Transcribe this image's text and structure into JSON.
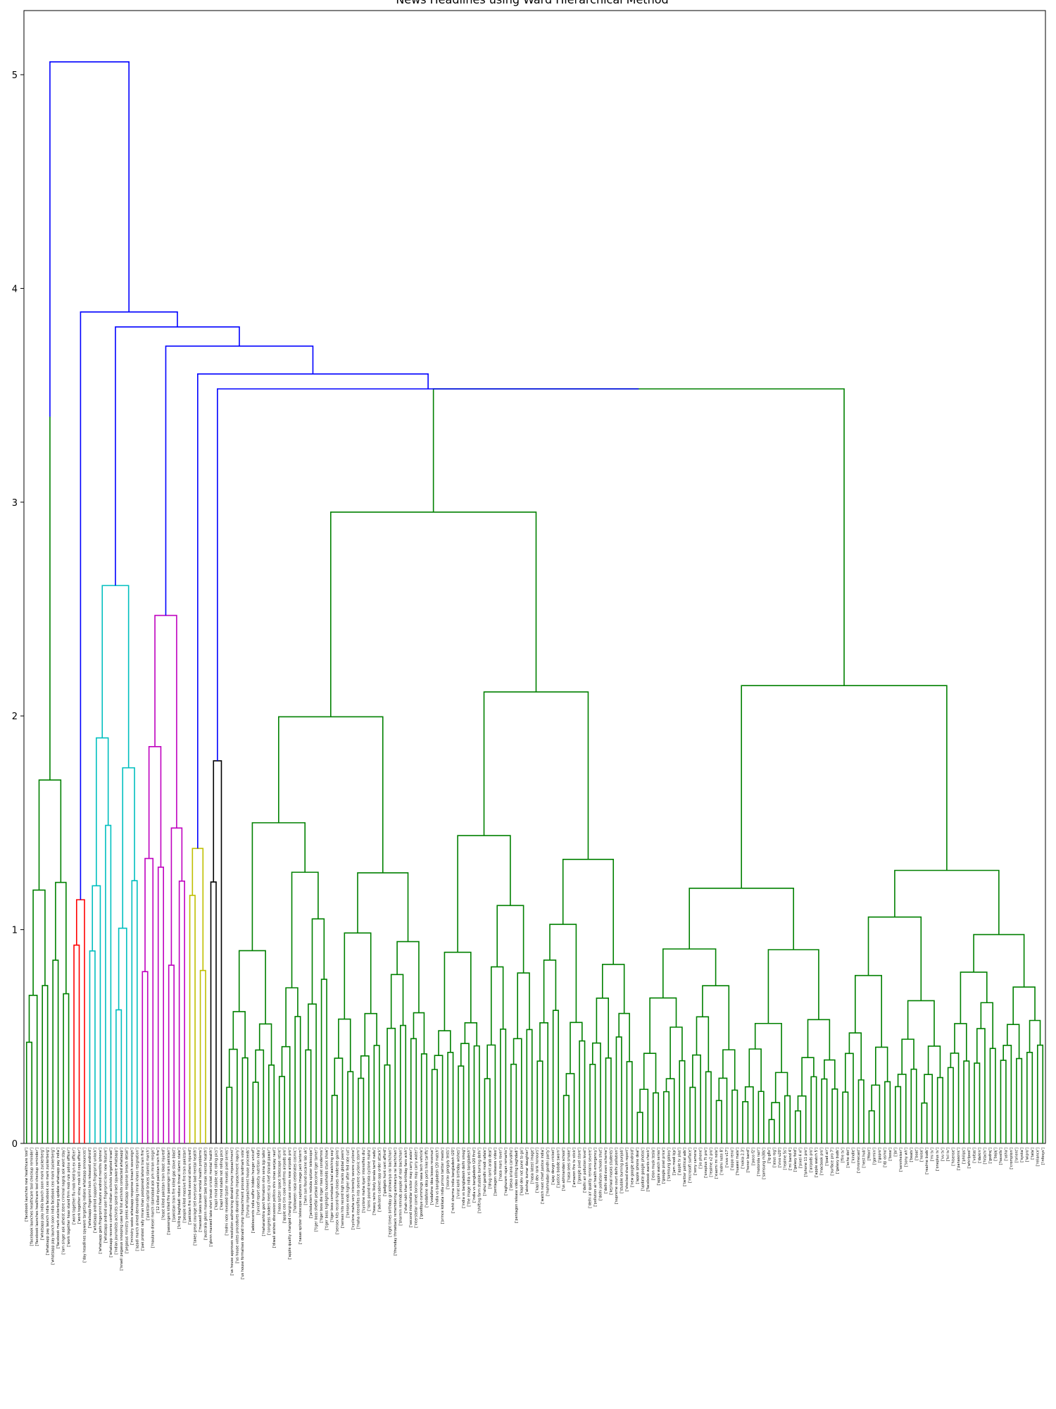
{
  "chart_data": {
    "type": "dendrogram",
    "title": "News Headlines using Ward Hierarchical Method",
    "xlabel": "",
    "ylabel": "",
    "ylim": [
      0,
      5.3
    ],
    "yticks": [
      0,
      1,
      2,
      3,
      4,
      5
    ],
    "grid": false,
    "colors": {
      "root": "#0000ff",
      "green": "#008000",
      "red": "#ff0000",
      "cyan": "#00bfbf",
      "magenta": "#bf00bf",
      "yellow": "#bfbf00",
      "black": "#000000"
    },
    "leaf_count": 194,
    "clusters": [
      {
        "color": "green",
        "leaf_range": [
          0,
          8
        ],
        "height": 1.7
      },
      {
        "color": "red",
        "leaf_range": [
          9,
          11
        ],
        "height": 1.14
      },
      {
        "color": "cyan",
        "leaf_range": [
          12,
          21
        ],
        "height": 2.61
      },
      {
        "color": "magenta",
        "leaf_range": [
          22,
          30
        ],
        "height": 2.47
      },
      {
        "color": "yellow",
        "leaf_range": [
          31,
          34
        ],
        "height": 1.38
      },
      {
        "color": "black",
        "leaf_range": [
          35,
          37
        ],
        "height": 1.79
      },
      {
        "color": "green",
        "leaf_range": [
          38,
          193
        ],
        "height": 3.53
      }
    ],
    "merge_heights": [
      5.06,
      3.89,
      3.82,
      3.73,
      3.6,
      3.53,
      3.4,
      3.25,
      3.2,
      3.17,
      3.12,
      3.09,
      3.05,
      2.93,
      2.91,
      2.85,
      2.82,
      2.78,
      2.73,
      2.69,
      2.55,
      2.48,
      2.46,
      2.39,
      2.36,
      2.33,
      2.12,
      2.06,
      2.03,
      2.0,
      1.98,
      1.93
    ],
    "leaf_labels": [
      "['facebook launches new healthcare tool']",
      "['facebook launches healthcare tool checkup reminder']",
      "['facebook launches healthcare tool checkup reminder']",
      "['whatsapp pay india launch soon mark zuckerberg']",
      "['whatsapp pay launch india facebook ceo mark zuckerberg']",
      "['whatsapp pay launch soon india facebook ceo mark zuckerberg']",
      "['facebook mark zuckerberg update whatsapp pay india']",
      "['iam singer ask atheist stere criminal nagraj ask want stay']",
      "['work together hoax stand firm mob rule police officer']",
      "['work together flu mob held lyn ex officer']",
      "['work together stray mob kill cops officer']",
      "['day headlines spyware targeting indians whatsapp announces']",
      "['whatsapp fingerprint lock released android']",
      "['whatsapp android supports fingerprint unlock']",
      "['whatsapp gets fingerprint feature android months iphone']",
      "['whatsapp android user fingerprint lock new feature']",
      "['whatsapp reverse confirmed indian activists targeted israel']",
      "['indian journalists activists spied israeli spyware whatsapp']",
      "['israeli pegasus snooping case full list activists contacted whatsapp']",
      "['pegasus ministry seeks whatsapp response breach detail']",
      "['ministry seeks whatsapp response breach sovereign']",
      "['azadi march aimed demanding imran khans resignation']",
      "['pak protest rally imran khan postponed lahore train fire']",
      "['pakistan capital braces islamist march']",
      "['maulana diesel march islamabad ask pm imran resign']",
      "['12 killed injured pakistan train fire']",
      "['least killed pakistan train blast injured']",
      "['passengers killed fire passenger train pakistan']",
      "['pakistan train fire killed gas stove blast']",
      "['killing baghdadi reduce threat islamic state']",
      "['people killed massive fire train pakistan']",
      "['pakistan fire killed several others injured']",
      "['takes great courage tell everyone bad mental health']",
      "['maxwell takes break mental health problems']",
      "['australia glenn maxwell take break mental health']",
      "['glenn maxwell take short break cricket mental health']",
      "['kapil mind stable not rolling pics']",
      "['kapil mind stable not rolling pics']",
      "['redmi note revealed tipster reveals pixel series']",
      "['us house approves resolution authorising donald trump impeachment']",
      "['us house votes procedures donald trump impeachment inquiry']",
      "['us house formalises donald trump impeachment process landmark vote']",
      "['trump impeachment house proceeds']",
      "['adolescents india suffer hidden hunger unicef']",
      "['unicef report obesity nutrition india']",
      "['maharashtra govt formation shiv sena bjp talks']",
      "['congress leaders meet ncp chief sharad pawar']",
      "['diwali wishes discussion politics shiv sinas sanjay raut']",
      "['nasa spitzer space telescope retire']",
      "['apple ceo tim cook confirms airpods pro']",
      "['apple quality changed charging case comes new airpods pro']",
      "['halloween nasa celebrates cosmic']",
      "['nasas spitzer telescope captures image jack lantern']",
      "['twin sun found cocaine lab uk']",
      "['jackolantern nebula spitzer telescope']",
      "['tiger boss shefali petwal become tiger tamer']",
      "['tiger boss die tiger rises cost condemns']",
      "['tiger boss highlights households stuck show']",
      "['tiger boss comeback heal watching sep']",
      "['sensex hits record high closes moderate gains']",
      "['sensex hits record high tracks global peers']",
      "['sensex ends higher after fed rate cut']",
      "['cyclone maha very intensity severe cyclone']",
      "['maha intensifies into severe cyclonic storm']",
      "['cyclone maha kyarr intensifies diu']",
      "['rains pound kerala cyclone maha']",
      "['heavy rains likely kerala tamil nadu']",
      "['advisers cabinet opp order attack']",
      "['gadgets hunt cant afford']",
      "['eight times birthday gir aishwarya rai bachchan']",
      "['thursday throwback remembering aishwarya rai bachchan']",
      "['sharmin reminds people of real bachchan']",
      "['shah rukh khan birthday fans wish']",
      "['second interstellar visitor may carry water']",
      "['interstellar comet borisov may carry water']",
      "['goodbye cummings nasa tech vehicle']",
      "['vodafone idea ports hike tariffs']",
      "['vodafone idea losses revenue']",
      "['india vs bangladesh t20 match']",
      "['prince kolkata india prince twitter meets']",
      "['sourav ganguly tests']",
      "['rohit sharma india bangladesh t20']",
      "['virat kohli birthday wishes']",
      "['india vs bangladesh delhi smog']",
      "['the image india vs bangladesh']",
      "['india vs bangladesh t20 first']",
      "['shifting farm stubble burning delhi']",
      "['rahul gandhi modi rafale']",
      "['drug ramit arab deal']",
      "['pentagon releases video']",
      "['nasa mars rover']",
      "['raghuram rajan remarks']",
      "['alexa ariana carvalho']",
      "['pentagon release video killing baghdadi']",
      "['kapil dev not pune to go']",
      "['akshay kumar daughter']",
      "['nasa latest image']",
      "['kapil dev rank honours']",
      "['watch next chief justice india']",
      "['mahmadan gandhi party']",
      "['ajay devgn cricket']",
      "['justice bobde sworn']",
      "['us abhinandan school']",
      "['nasa sees smoke']",
      "['amazon fire tv stick']",
      "['google pixel store']",
      "['delhi air pollution level']",
      "['delhi air quality remains severe']",
      "['pollution air health emergency']",
      "['delhi pollution schools shut']",
      "['delhi odd even scheme']",
      "['kejriwal masks students']",
      "['supreme court delhi pollution']",
      "['stubble burning punjab']",
      "['shocked shaikh report']",
      "['new google android']",
      "['apple iphone deal']",
      "['update google photos']",
      "['facebook wants check']",
      "['elon musk tesla']",
      "['apple watch series']",
      "['google pixel price']",
      "['samsung galaxy']",
      "['jam modi bjp']",
      "['apple tv plus']",
      "['twitter political ads']",
      "['microsoft surface']",
      "['sony camera']",
      "['jio phone']",
      "['oneplus 7t pro']",
      "['realme x2 pro']",
      "['xiaomi mi note']",
      "['redmi note 8']",
      "['vivo v17']",
      "['oppo reno']",
      "['huawei mate']",
      "['nokia 2.3']",
      "['honor band']",
      "['poco f2']",
      "['motorola razr']",
      "['samsung m30s']",
      "['lg g8x']",
      "['asus rog']",
      "['vivo u20']",
      "['realme 5s']",
      "['mi band 4']",
      "['galaxy fold']",
      "['pixel 4 xl']",
      "['iphone 11 pro']",
      "['airpods pro']",
      "['apple watch 5']",
      "['macbook pro']",
      "['ipad air']",
      "['surface pro 7']",
      "['galaxy buds']",
      "['fire tv']",
      "['echo dot']",
      "['kindle']",
      "['chromecast']",
      "['nest hub']",
      "['fitbit']",
      "['garmin']",
      "['gopro']",
      "['dji osmo']",
      "['bose']",
      "['jbl']",
      "['sennheiser']",
      "['sony wh']",
      "['beats']",
      "['boat']",
      "['noise']",
      "['realme buds']",
      "['mi tv']",
      "['oneplus tv']",
      "['vu tv']",
      "['tcl tv']",
      "['hisense']",
      "['panasonic']",
      "['philips']",
      "['whirlpool']",
      "['voltas']",
      "['daikin']",
      "['hitachi']",
      "['godrej']",
      "['bajaj']",
      "['havells']",
      "['usha']",
      "['crompton']",
      "['orient']",
      "['syska']",
      "['wipro']",
      "['tata']",
      "['reliance']",
      "['infosys']"
    ]
  }
}
